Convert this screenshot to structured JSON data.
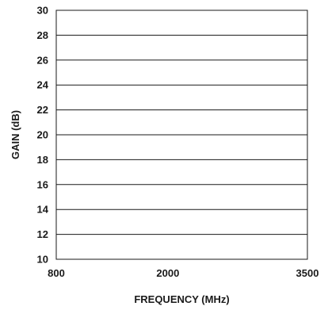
{
  "chart_data": {
    "type": "line",
    "title": "",
    "xlabel": "FREQUENCY (MHz)",
    "ylabel": "GAIN (dB)",
    "xlim": [
      800,
      3500
    ],
    "ylim": [
      10,
      30
    ],
    "x_ticks": [
      "800",
      "2000",
      "3500"
    ],
    "x_tick_values": [
      800,
      2000,
      3500
    ],
    "y_ticks": [
      "10",
      "12",
      "14",
      "16",
      "18",
      "20",
      "22",
      "24",
      "26",
      "28",
      "30"
    ],
    "y_tick_values": [
      10,
      12,
      14,
      16,
      18,
      20,
      22,
      24,
      26,
      28,
      30
    ],
    "grid": "horizontal",
    "series": []
  }
}
